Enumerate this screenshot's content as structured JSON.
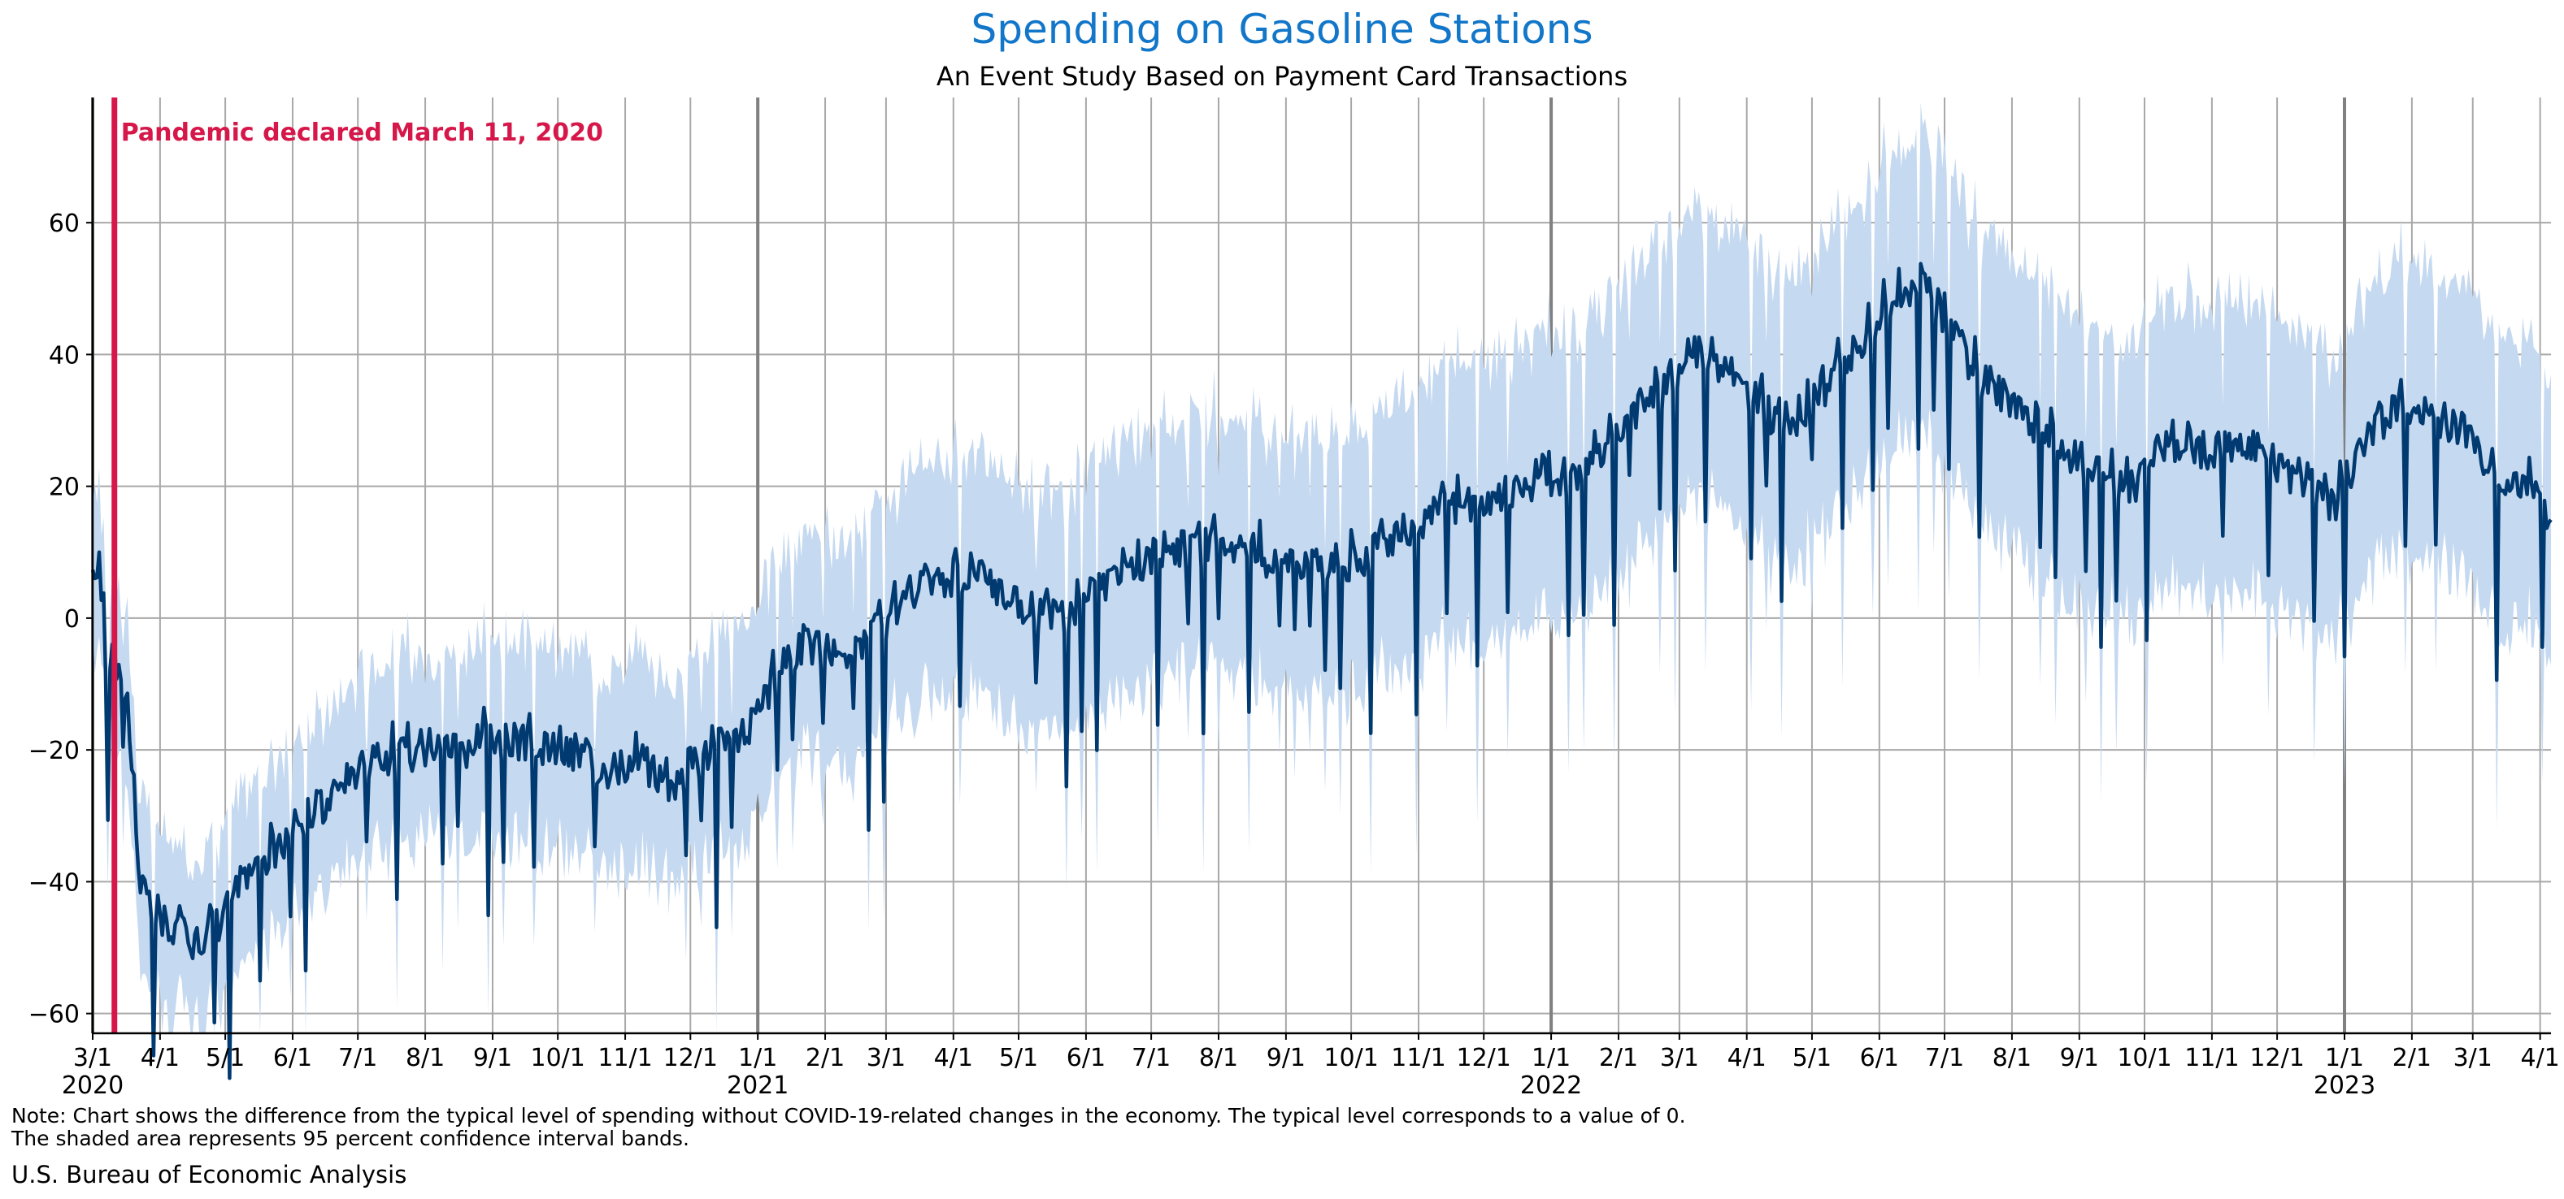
{
  "chart_data": {
    "type": "line",
    "title": "Spending on Gasoline Stations",
    "subtitle": "An Event Study Based on Payment Card Transactions",
    "xlabel": "",
    "ylabel": "",
    "x_start": "2020-03-01",
    "x_end": "2023-04-06",
    "ylim": [
      -63,
      79
    ],
    "yticks": [
      -60,
      -40,
      -20,
      0,
      20,
      40,
      60
    ],
    "grid": true,
    "month_ticks": [
      {
        "date": "2020-03-01",
        "label": "3/1",
        "year": "2020"
      },
      {
        "date": "2020-04-01",
        "label": "4/1"
      },
      {
        "date": "2020-05-01",
        "label": "5/1"
      },
      {
        "date": "2020-06-01",
        "label": "6/1"
      },
      {
        "date": "2020-07-01",
        "label": "7/1"
      },
      {
        "date": "2020-08-01",
        "label": "8/1"
      },
      {
        "date": "2020-09-01",
        "label": "9/1"
      },
      {
        "date": "2020-10-01",
        "label": "10/1"
      },
      {
        "date": "2020-11-01",
        "label": "11/1"
      },
      {
        "date": "2020-12-01",
        "label": "12/1"
      },
      {
        "date": "2021-01-01",
        "label": "1/1",
        "year": "2021"
      },
      {
        "date": "2021-02-01",
        "label": "2/1"
      },
      {
        "date": "2021-03-01",
        "label": "3/1"
      },
      {
        "date": "2021-04-01",
        "label": "4/1"
      },
      {
        "date": "2021-05-01",
        "label": "5/1"
      },
      {
        "date": "2021-06-01",
        "label": "6/1"
      },
      {
        "date": "2021-07-01",
        "label": "7/1"
      },
      {
        "date": "2021-08-01",
        "label": "8/1"
      },
      {
        "date": "2021-09-01",
        "label": "9/1"
      },
      {
        "date": "2021-10-01",
        "label": "10/1"
      },
      {
        "date": "2021-11-01",
        "label": "11/1"
      },
      {
        "date": "2021-12-01",
        "label": "12/1"
      },
      {
        "date": "2022-01-01",
        "label": "1/1",
        "year": "2022"
      },
      {
        "date": "2022-02-01",
        "label": "2/1"
      },
      {
        "date": "2022-03-01",
        "label": "3/1"
      },
      {
        "date": "2022-04-01",
        "label": "4/1"
      },
      {
        "date": "2022-05-01",
        "label": "5/1"
      },
      {
        "date": "2022-06-01",
        "label": "6/1"
      },
      {
        "date": "2022-07-01",
        "label": "7/1"
      },
      {
        "date": "2022-08-01",
        "label": "8/1"
      },
      {
        "date": "2022-09-01",
        "label": "9/1"
      },
      {
        "date": "2022-10-01",
        "label": "10/1"
      },
      {
        "date": "2022-11-01",
        "label": "11/1"
      },
      {
        "date": "2022-12-01",
        "label": "12/1"
      },
      {
        "date": "2023-01-01",
        "label": "1/1",
        "year": "2023"
      },
      {
        "date": "2023-02-01",
        "label": "2/1"
      },
      {
        "date": "2023-03-01",
        "label": "3/1"
      },
      {
        "date": "2023-04-01",
        "label": "4/1"
      }
    ],
    "event": {
      "date": "2020-03-11",
      "label": "Pandemic declared March 11, 2020",
      "color": "#d6174a"
    },
    "series": [
      {
        "color": "#003a70",
        "band_color": "#c5d9f0",
        "points": [
          [
            "2020-03-01",
            5
          ],
          [
            "2020-03-04",
            10
          ],
          [
            "2020-03-07",
            -7
          ],
          [
            "2020-03-11",
            -6
          ],
          [
            "2020-03-14",
            -10
          ],
          [
            "2020-03-17",
            -12
          ],
          [
            "2020-03-20",
            -28
          ],
          [
            "2020-03-23",
            -40
          ],
          [
            "2020-03-27",
            -44
          ],
          [
            "2020-04-01",
            -45
          ],
          [
            "2020-04-07",
            -47
          ],
          [
            "2020-04-14",
            -49
          ],
          [
            "2020-04-21",
            -48
          ],
          [
            "2020-04-28",
            -46
          ],
          [
            "2020-05-05",
            -42
          ],
          [
            "2020-05-12",
            -40
          ],
          [
            "2020-05-19",
            -37
          ],
          [
            "2020-05-26",
            -35
          ],
          [
            "2020-06-02",
            -32
          ],
          [
            "2020-06-09",
            -30
          ],
          [
            "2020-06-16",
            -28
          ],
          [
            "2020-06-23",
            -26
          ],
          [
            "2020-06-30",
            -23
          ],
          [
            "2020-07-07",
            -21
          ],
          [
            "2020-07-14",
            -21
          ],
          [
            "2020-07-21",
            -21
          ],
          [
            "2020-07-28",
            -20
          ],
          [
            "2020-08-04",
            -19
          ],
          [
            "2020-08-11",
            -19
          ],
          [
            "2020-08-18",
            -20
          ],
          [
            "2020-08-25",
            -19
          ],
          [
            "2020-09-01",
            -18
          ],
          [
            "2020-09-08",
            -19
          ],
          [
            "2020-09-15",
            -19
          ],
          [
            "2020-09-22",
            -21
          ],
          [
            "2020-09-29",
            -20
          ],
          [
            "2020-10-06",
            -21
          ],
          [
            "2020-10-13",
            -21
          ],
          [
            "2020-10-20",
            -23
          ],
          [
            "2020-10-27",
            -23
          ],
          [
            "2020-11-03",
            -22
          ],
          [
            "2020-11-10",
            -22
          ],
          [
            "2020-11-17",
            -24
          ],
          [
            "2020-11-24",
            -26
          ],
          [
            "2020-12-01",
            -22
          ],
          [
            "2020-12-08",
            -21
          ],
          [
            "2020-12-15",
            -19
          ],
          [
            "2020-12-22",
            -18
          ],
          [
            "2020-12-29",
            -16
          ],
          [
            "2021-01-05",
            -12
          ],
          [
            "2021-01-12",
            -8
          ],
          [
            "2021-01-19",
            -5
          ],
          [
            "2021-01-26",
            -4
          ],
          [
            "2021-02-02",
            -5
          ],
          [
            "2021-02-09",
            -6
          ],
          [
            "2021-02-16",
            -5
          ],
          [
            "2021-02-23",
            -2
          ],
          [
            "2021-03-02",
            0
          ],
          [
            "2021-03-09",
            2
          ],
          [
            "2021-03-16",
            4
          ],
          [
            "2021-03-23",
            5
          ],
          [
            "2021-03-30",
            6
          ],
          [
            "2021-04-06",
            7
          ],
          [
            "2021-04-13",
            6
          ],
          [
            "2021-04-20",
            5
          ],
          [
            "2021-04-27",
            3
          ],
          [
            "2021-05-04",
            2
          ],
          [
            "2021-05-11",
            1
          ],
          [
            "2021-05-18",
            0
          ],
          [
            "2021-05-25",
            1
          ],
          [
            "2021-06-01",
            3
          ],
          [
            "2021-06-08",
            5
          ],
          [
            "2021-06-15",
            7
          ],
          [
            "2021-06-22",
            8
          ],
          [
            "2021-06-29",
            9
          ],
          [
            "2021-07-06",
            10
          ],
          [
            "2021-07-13",
            11
          ],
          [
            "2021-07-20",
            10
          ],
          [
            "2021-07-27",
            11
          ],
          [
            "2021-08-03",
            11
          ],
          [
            "2021-08-10",
            10
          ],
          [
            "2021-08-17",
            10
          ],
          [
            "2021-08-24",
            9
          ],
          [
            "2021-08-31",
            8
          ],
          [
            "2021-09-07",
            9
          ],
          [
            "2021-09-14",
            8
          ],
          [
            "2021-09-21",
            7
          ],
          [
            "2021-09-28",
            8
          ],
          [
            "2021-10-05",
            9
          ],
          [
            "2021-10-12",
            10
          ],
          [
            "2021-10-19",
            12
          ],
          [
            "2021-10-26",
            13
          ],
          [
            "2021-11-02",
            15
          ],
          [
            "2021-11-09",
            16
          ],
          [
            "2021-11-16",
            17
          ],
          [
            "2021-11-23",
            17
          ],
          [
            "2021-11-30",
            17
          ],
          [
            "2021-12-07",
            18
          ],
          [
            "2021-12-14",
            19
          ],
          [
            "2021-12-21",
            20
          ],
          [
            "2021-12-28",
            22
          ],
          [
            "2022-01-04",
            19
          ],
          [
            "2022-01-11",
            21
          ],
          [
            "2022-01-18",
            22
          ],
          [
            "2022-01-25",
            25
          ],
          [
            "2022-02-01",
            29
          ],
          [
            "2022-02-08",
            31
          ],
          [
            "2022-02-15",
            33
          ],
          [
            "2022-02-22",
            34
          ],
          [
            "2022-03-01",
            38
          ],
          [
            "2022-03-08",
            41
          ],
          [
            "2022-03-15",
            40
          ],
          [
            "2022-03-22",
            38
          ],
          [
            "2022-03-29",
            35
          ],
          [
            "2022-04-05",
            33
          ],
          [
            "2022-04-12",
            31
          ],
          [
            "2022-04-19",
            30
          ],
          [
            "2022-04-26",
            31
          ],
          [
            "2022-05-03",
            33
          ],
          [
            "2022-05-10",
            36
          ],
          [
            "2022-05-17",
            39
          ],
          [
            "2022-05-24",
            42
          ],
          [
            "2022-05-31",
            45
          ],
          [
            "2022-06-07",
            48
          ],
          [
            "2022-06-14",
            50
          ],
          [
            "2022-06-21",
            51
          ],
          [
            "2022-06-28",
            47
          ],
          [
            "2022-07-05",
            43
          ],
          [
            "2022-07-12",
            39
          ],
          [
            "2022-07-19",
            36
          ],
          [
            "2022-07-26",
            34
          ],
          [
            "2022-08-02",
            32
          ],
          [
            "2022-08-09",
            30
          ],
          [
            "2022-08-16",
            28
          ],
          [
            "2022-08-23",
            26
          ],
          [
            "2022-08-30",
            24
          ],
          [
            "2022-09-06",
            22
          ],
          [
            "2022-09-13",
            21
          ],
          [
            "2022-09-20",
            20
          ],
          [
            "2022-09-27",
            20
          ],
          [
            "2022-10-04",
            23
          ],
          [
            "2022-10-11",
            26
          ],
          [
            "2022-10-18",
            27
          ],
          [
            "2022-10-25",
            26
          ],
          [
            "2022-11-01",
            25
          ],
          [
            "2022-11-08",
            26
          ],
          [
            "2022-11-15",
            27
          ],
          [
            "2022-11-22",
            26
          ],
          [
            "2022-11-29",
            24
          ],
          [
            "2022-12-06",
            22
          ],
          [
            "2022-12-13",
            21
          ],
          [
            "2022-12-20",
            20
          ],
          [
            "2022-12-27",
            17
          ],
          [
            "2023-01-03",
            22
          ],
          [
            "2023-01-10",
            27
          ],
          [
            "2023-01-17",
            30
          ],
          [
            "2023-01-24",
            31
          ],
          [
            "2023-01-31",
            32
          ],
          [
            "2023-02-07",
            31
          ],
          [
            "2023-02-14",
            30
          ],
          [
            "2023-02-21",
            29
          ],
          [
            "2023-02-28",
            27
          ],
          [
            "2023-03-07",
            22
          ],
          [
            "2023-03-14",
            20
          ],
          [
            "2023-03-21",
            21
          ],
          [
            "2023-03-28",
            22
          ],
          [
            "2023-04-06",
            12
          ]
        ]
      }
    ]
  },
  "footer": {
    "note_line1": "Note: Chart shows the difference from the typical level of spending without COVID-19-related changes in the economy. The typical level corresponds to a value of 0.",
    "note_line2": "The shaded area represents 95 percent confidence interval bands.",
    "source": "U.S. Bureau of Economic Analysis"
  }
}
